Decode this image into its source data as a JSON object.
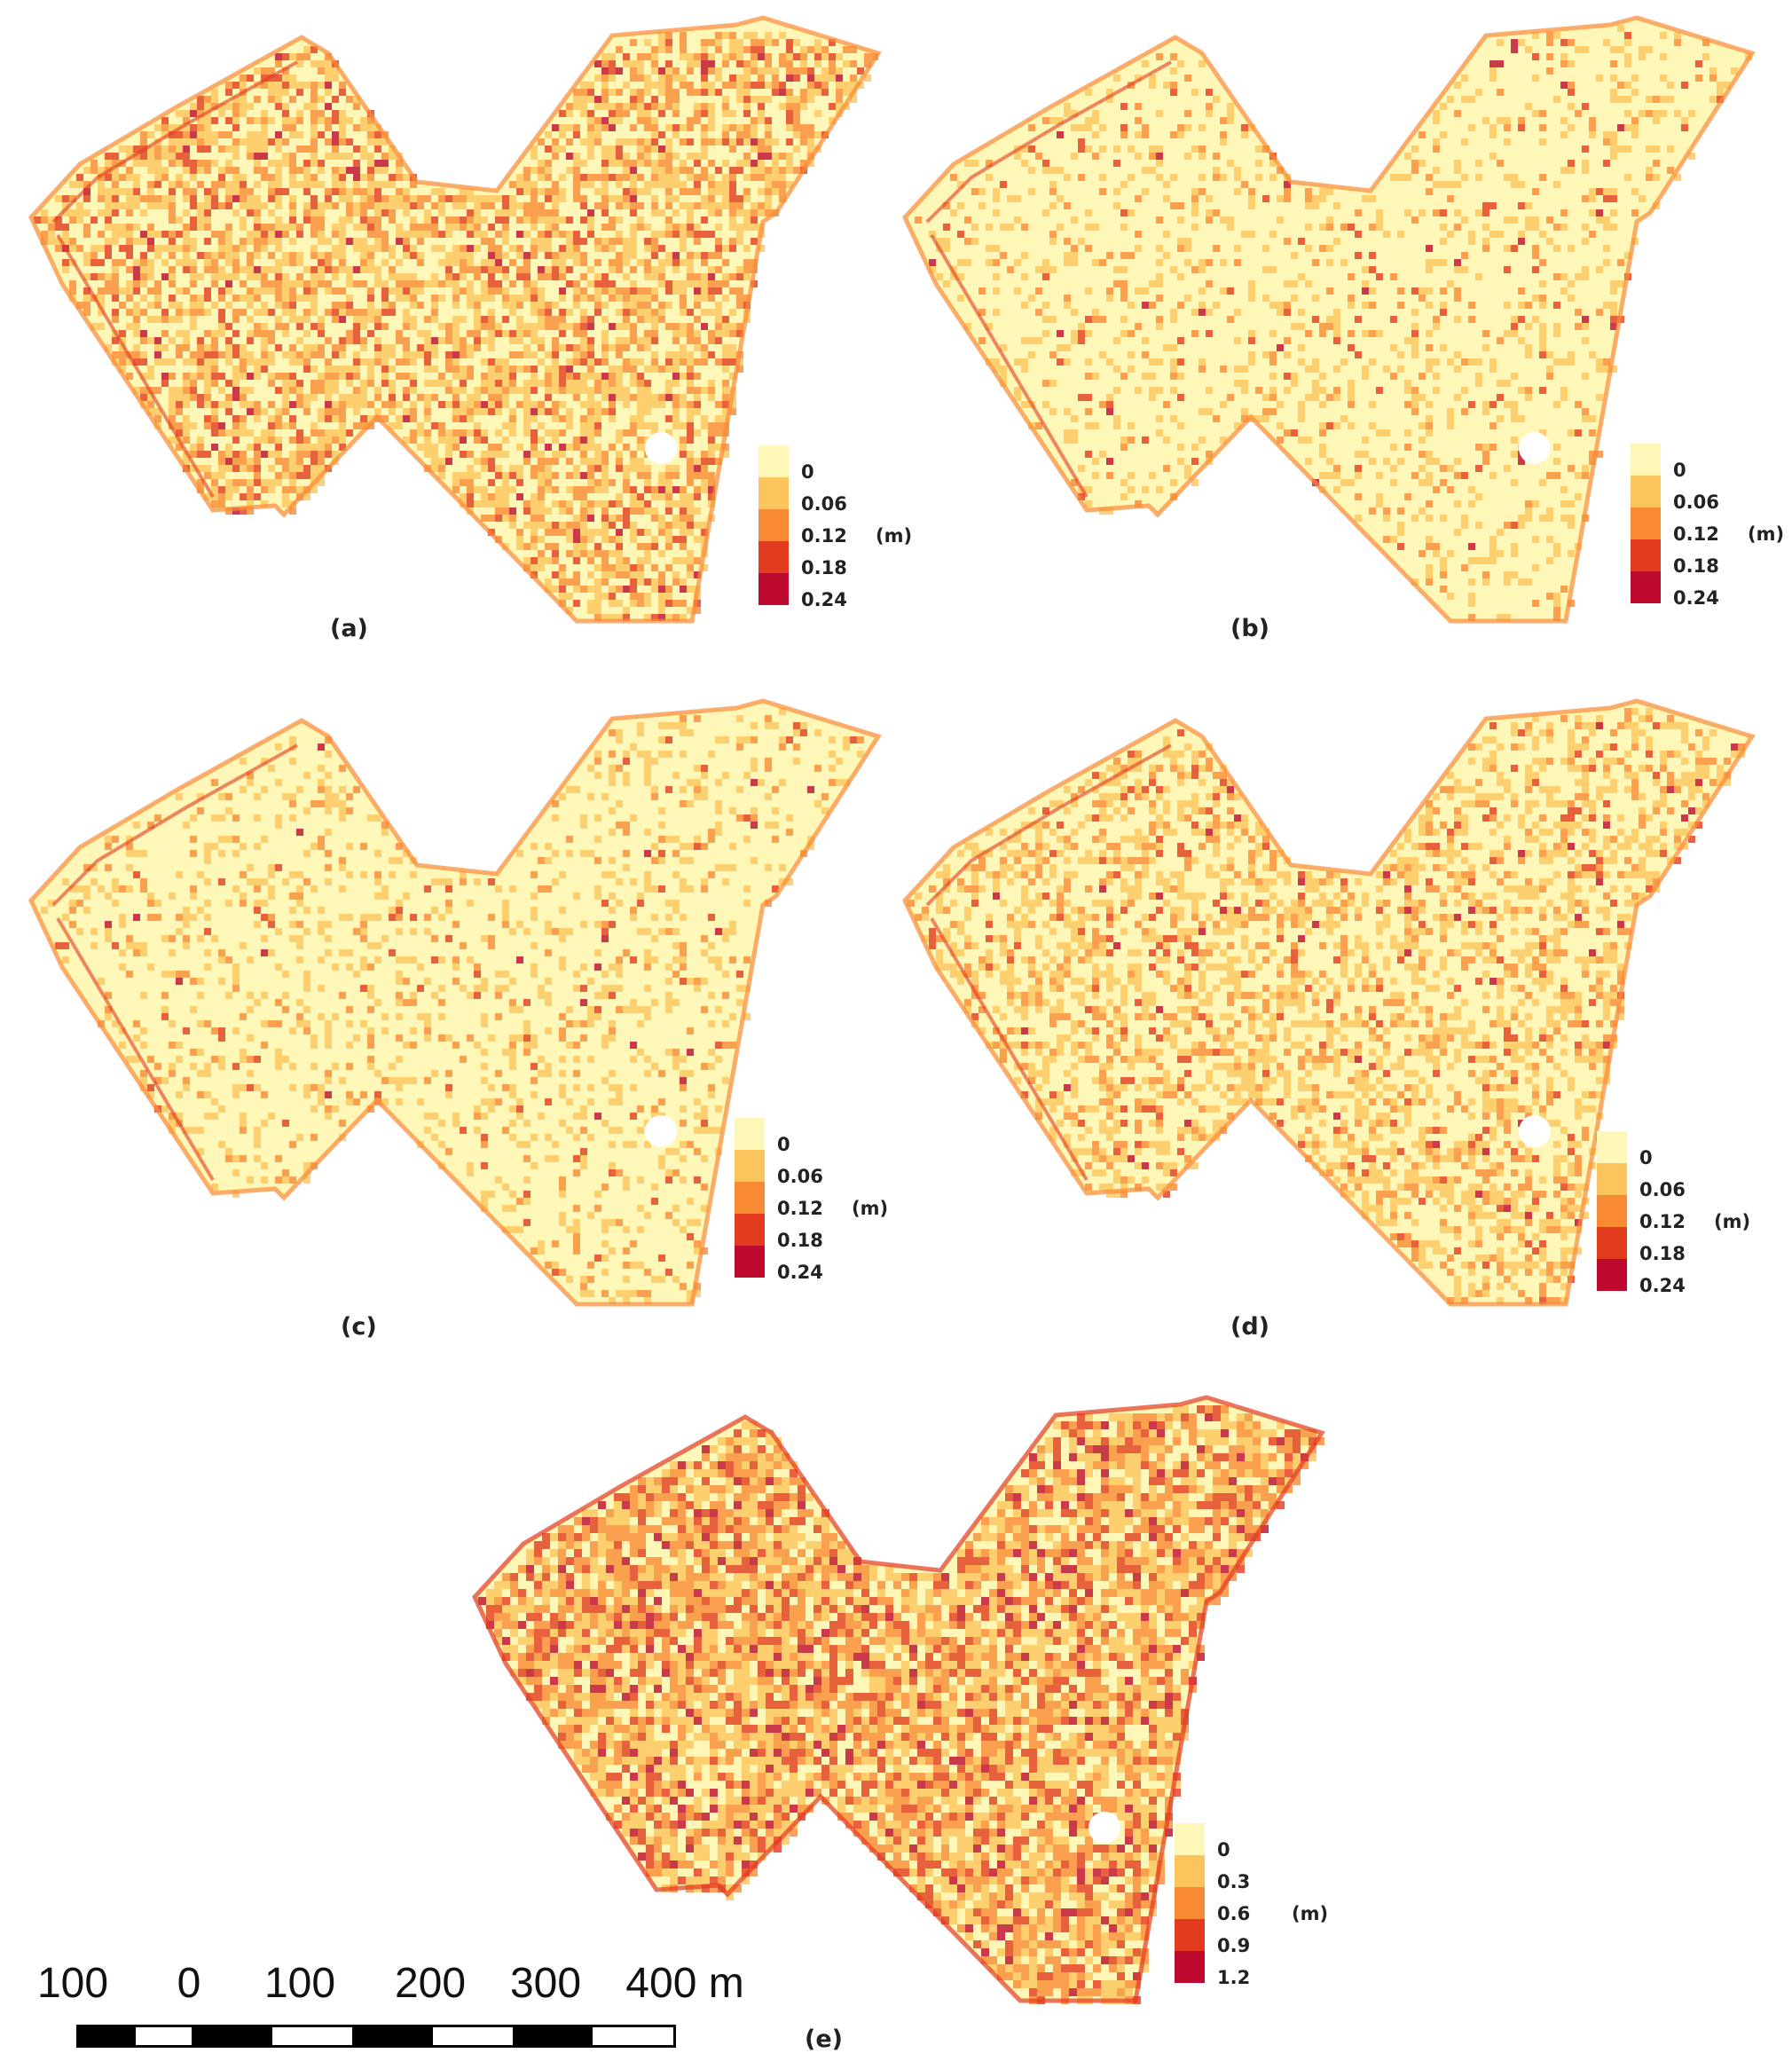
{
  "palette": {
    "bins": [
      "#fff7b8",
      "#fcc45c",
      "#f98a34",
      "#e23b1e",
      "#be0a2e"
    ]
  },
  "panels": [
    {
      "id": "a",
      "label": "(a)",
      "legend_ticks": [
        "0",
        "0.06",
        "0.12",
        "0.18",
        "0.24"
      ],
      "unit": "(m)",
      "intensity": "high"
    },
    {
      "id": "b",
      "label": "(b)",
      "legend_ticks": [
        "0",
        "0.06",
        "0.12",
        "0.18",
        "0.24"
      ],
      "unit": "(m)",
      "intensity": "low"
    },
    {
      "id": "c",
      "label": "(c)",
      "legend_ticks": [
        "0",
        "0.06",
        "0.12",
        "0.18",
        "0.24"
      ],
      "unit": "(m)",
      "intensity": "low"
    },
    {
      "id": "d",
      "label": "(d)",
      "legend_ticks": [
        "0",
        "0.06",
        "0.12",
        "0.18",
        "0.24"
      ],
      "unit": "(m)",
      "intensity": "medium"
    },
    {
      "id": "e",
      "label": "(e)",
      "legend_ticks": [
        "0",
        "0.3",
        "0.6",
        "0.9",
        "1.2"
      ],
      "unit": "(m)",
      "intensity": "very-high"
    }
  ],
  "scale_bar": {
    "ticks": [
      "100",
      "0",
      "100",
      "200",
      "300",
      "400 m"
    ]
  }
}
